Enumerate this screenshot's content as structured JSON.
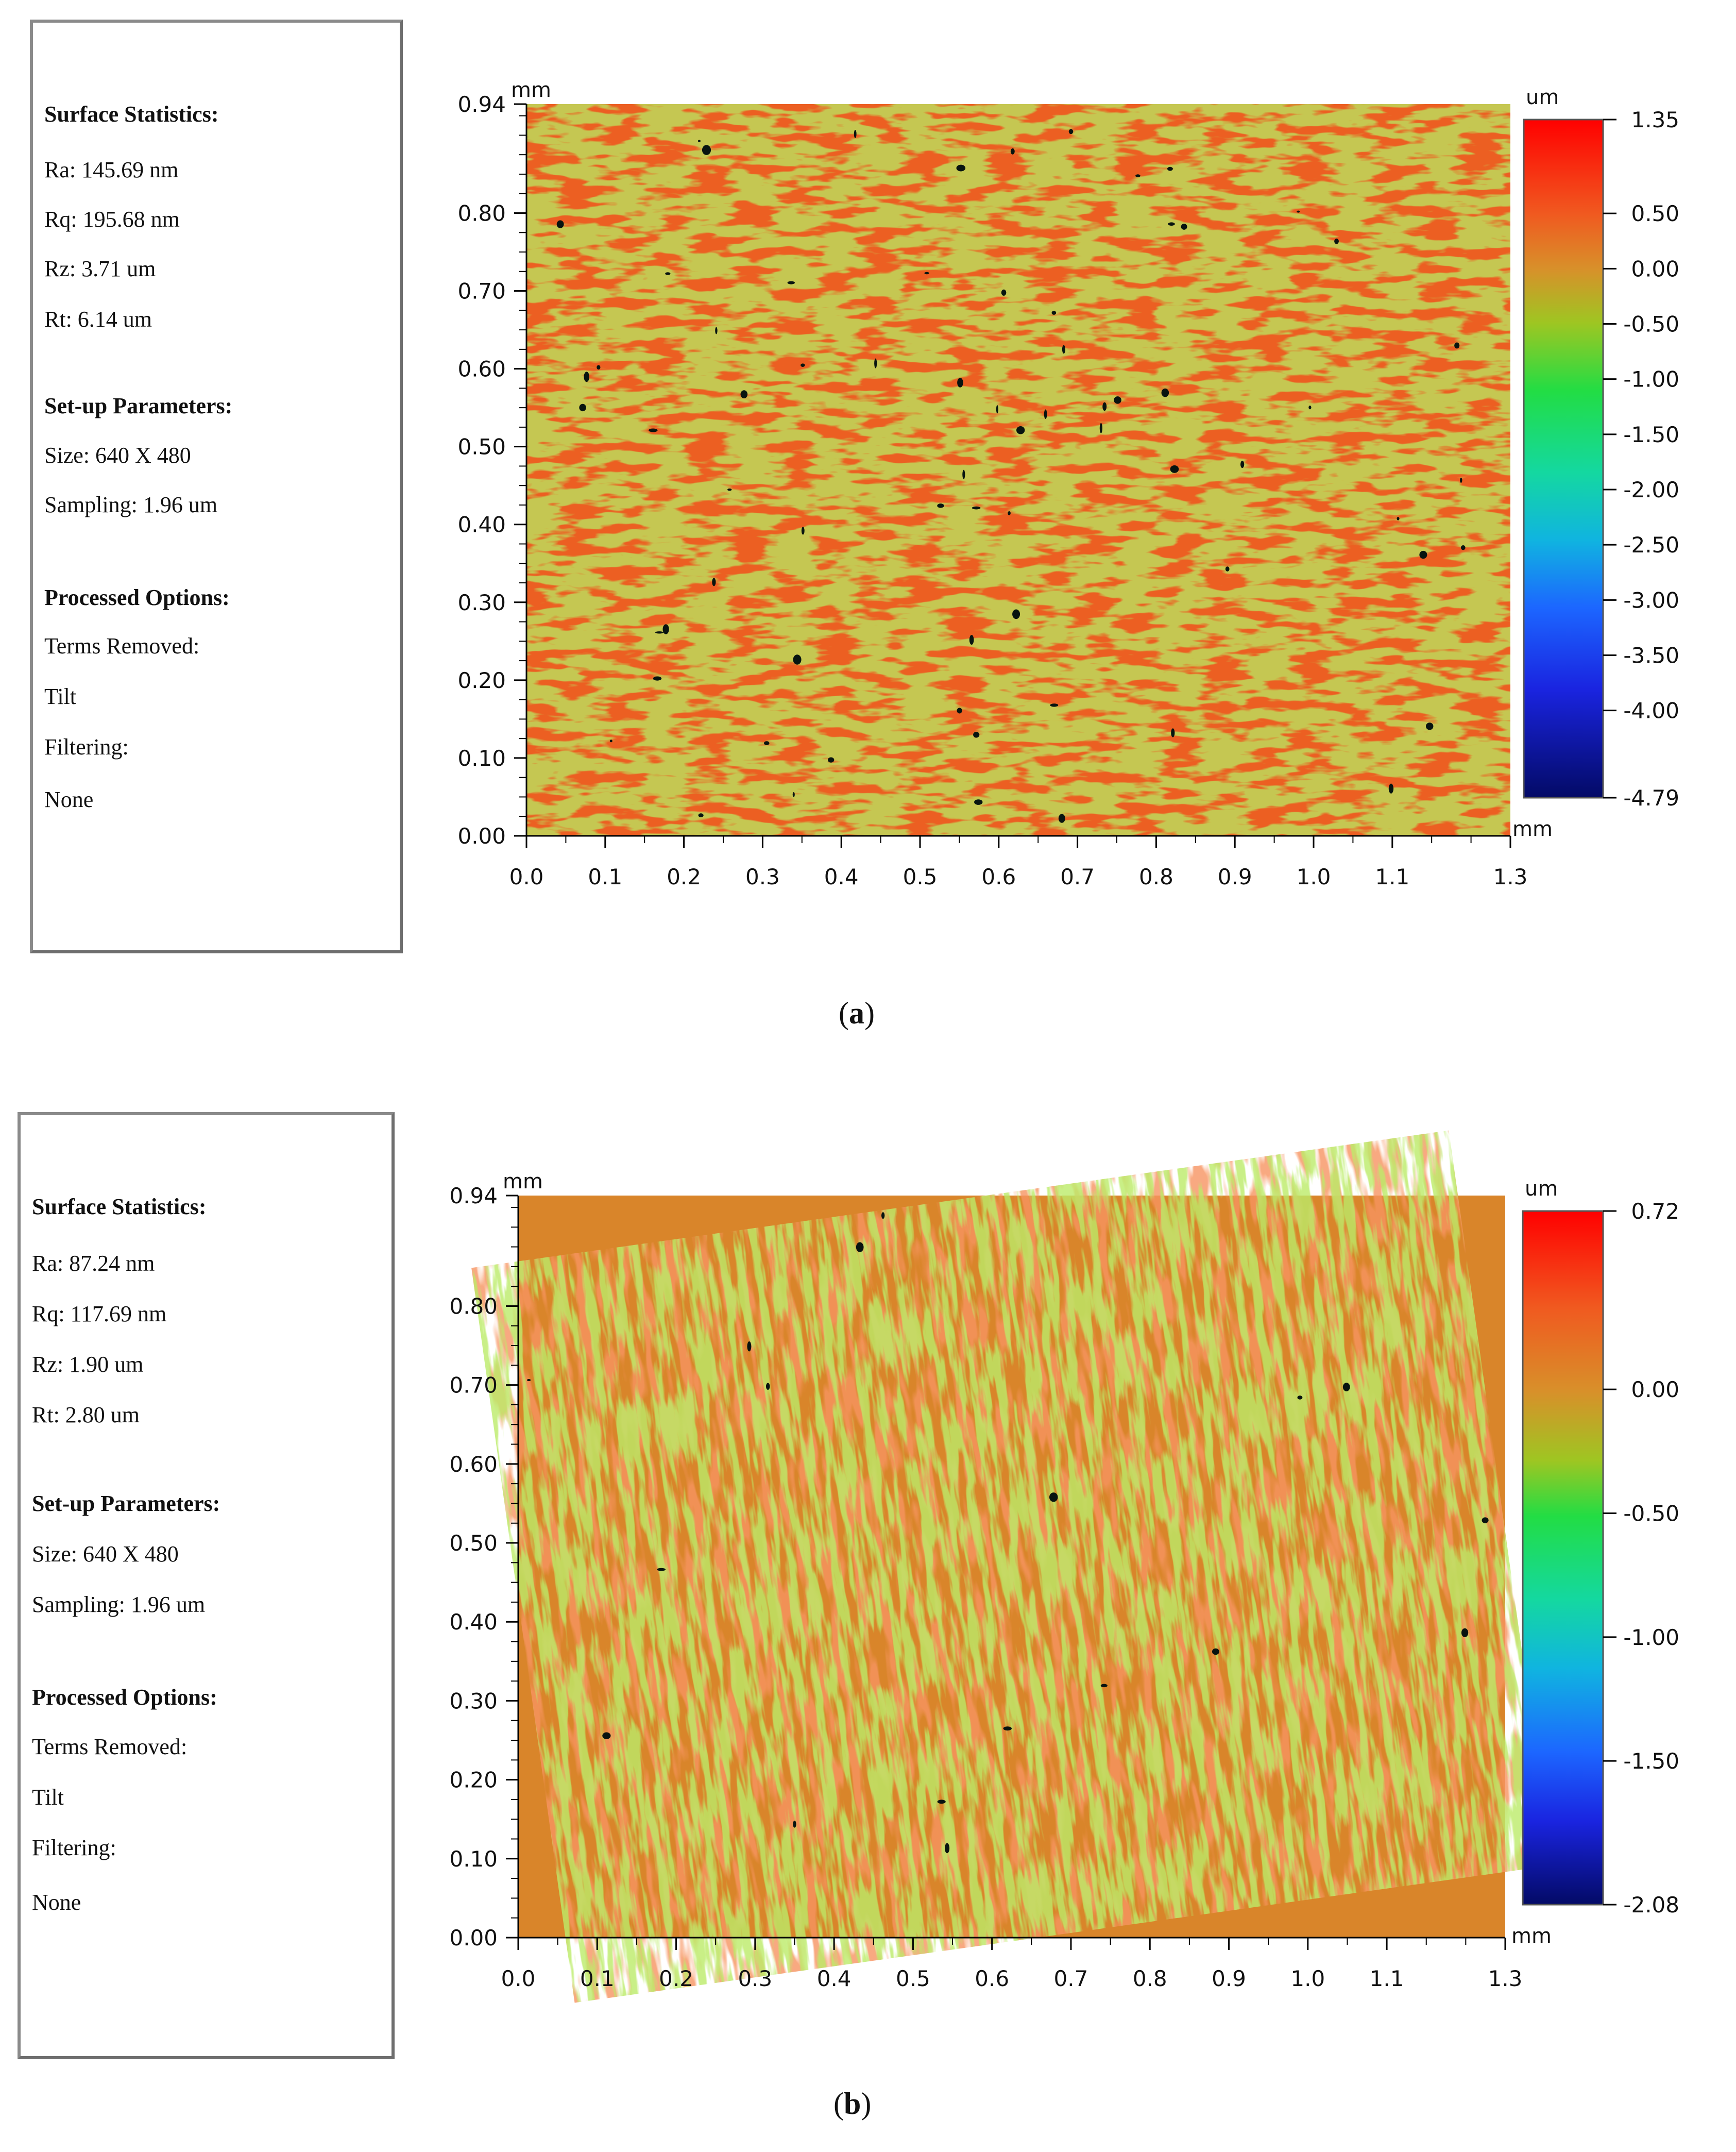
{
  "colors": {
    "surface_main": "#ec5f22",
    "surface_alt": "#d88a2a",
    "speckle_green": "#7ad21e",
    "hole": "#081410",
    "axis": "#000000"
  },
  "figures": [
    {
      "caption_letter": "a",
      "panel": {
        "surface_head": "Surface Statistics:",
        "ra": "Ra:  145.69 nm",
        "rq": "Rq:  195.68 nm",
        "rz": "Rz:  3.71 um",
        "rt": "Rt:  6.14 um",
        "setup_head": "Set-up Parameters:",
        "size": "Size: 640 X 480",
        "sampling": "Sampling:  1.96 um",
        "processed_head": "Processed Options:",
        "terms_removed": "Terms Removed:",
        "terms_value": "Tilt",
        "filtering": "Filtering:",
        "filtering_value": "None"
      }
    },
    {
      "caption_letter": "b",
      "panel": {
        "surface_head": "Surface Statistics:",
        "ra": "Ra:  87.24 nm",
        "rq": "Rq:  117.69 nm",
        "rz": "Rz:  1.90 um",
        "rt": "Rt:  2.80 um",
        "setup_head": "Set-up Parameters:",
        "size": "Size: 640 X 480",
        "sampling": "Sampling:  1.96 um",
        "processed_head": "Processed Options:",
        "terms_removed": "Terms Removed:",
        "terms_value": "Tilt",
        "filtering": "Filtering:",
        "filtering_value": "None"
      }
    }
  ],
  "chart_data": [
    {
      "type": "heatmap",
      "title": "(a)",
      "x_unit": "mm",
      "y_unit": "mm",
      "xlim": [
        0,
        1.25
      ],
      "ylim": [
        0,
        0.94
      ],
      "x_ticks": [
        "0.0",
        "0.1",
        "0.2",
        "0.3",
        "0.4",
        "0.5",
        "0.6",
        "0.7",
        "0.8",
        "0.9",
        "1.0",
        "1.1",
        "1.3"
      ],
      "x_tick_values": [
        0,
        0.1,
        0.2,
        0.3,
        0.4,
        0.5,
        0.6,
        0.7,
        0.8,
        0.9,
        1.0,
        1.1,
        1.25
      ],
      "y_ticks": [
        "0.00",
        "0.10",
        "0.20",
        "0.30",
        "0.40",
        "0.50",
        "0.60",
        "0.70",
        "0.80",
        "0.94"
      ],
      "y_tick_values": [
        0,
        0.1,
        0.2,
        0.3,
        0.4,
        0.5,
        0.6,
        0.7,
        0.8,
        0.94
      ],
      "colorbar": {
        "unit": "um",
        "bottom_unit": "mm",
        "min": -4.79,
        "max": 1.35,
        "tick_values": [
          1.35,
          0.5,
          0.0,
          -0.5,
          -1.0,
          -1.5,
          -2.0,
          -2.5,
          -3.0,
          -3.5,
          -4.0,
          -4.79
        ],
        "tick_labels": [
          "1.35",
          "0.50",
          "0.00",
          "-0.50",
          "-1.00",
          "-1.50",
          "-2.00",
          "-2.50",
          "-3.00",
          "-3.50",
          "-4.00",
          "-4.79"
        ]
      }
    },
    {
      "type": "heatmap",
      "title": "(b)",
      "x_unit": "mm",
      "y_unit": "mm",
      "xlim": [
        0,
        1.25
      ],
      "ylim": [
        0,
        0.94
      ],
      "x_ticks": [
        "0.0",
        "0.1",
        "0.2",
        "0.3",
        "0.4",
        "0.5",
        "0.6",
        "0.7",
        "0.8",
        "0.9",
        "1.0",
        "1.1",
        "1.3"
      ],
      "x_tick_values": [
        0,
        0.1,
        0.2,
        0.3,
        0.4,
        0.5,
        0.6,
        0.7,
        0.8,
        0.9,
        1.0,
        1.1,
        1.25
      ],
      "y_ticks": [
        "0.00",
        "0.10",
        "0.20",
        "0.30",
        "0.40",
        "0.50",
        "0.60",
        "0.70",
        "0.80",
        "0.94"
      ],
      "y_tick_values": [
        0,
        0.1,
        0.2,
        0.3,
        0.4,
        0.5,
        0.6,
        0.7,
        0.8,
        0.94
      ],
      "colorbar": {
        "unit": "um",
        "bottom_unit": "mm",
        "min": -2.08,
        "max": 0.72,
        "tick_values": [
          0.72,
          0.0,
          -0.5,
          -1.0,
          -1.5,
          -2.08
        ],
        "tick_labels": [
          "0.72",
          "0.00",
          "-0.50",
          "-1.00",
          "-1.50",
          "-2.08"
        ]
      }
    }
  ]
}
